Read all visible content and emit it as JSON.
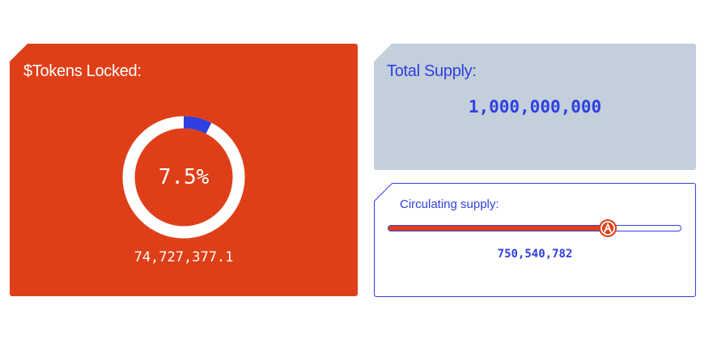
{
  "locked": {
    "title": "$Tokens Locked:",
    "percent_label": "7.5%",
    "percent_fraction": 0.075,
    "amount": "74,727,377.1"
  },
  "supply": {
    "title": "Total Supply:",
    "value": "1,000,000,000"
  },
  "circulating": {
    "title": "Circulating supply:",
    "value": "750,540,782",
    "level_fraction": 0.7505,
    "handle_icon": "a-logo-icon"
  },
  "colors": {
    "orange": "#df3f18",
    "blue": "#2f3fe0",
    "slate": "#c3cfdb",
    "white": "#ffffff"
  }
}
